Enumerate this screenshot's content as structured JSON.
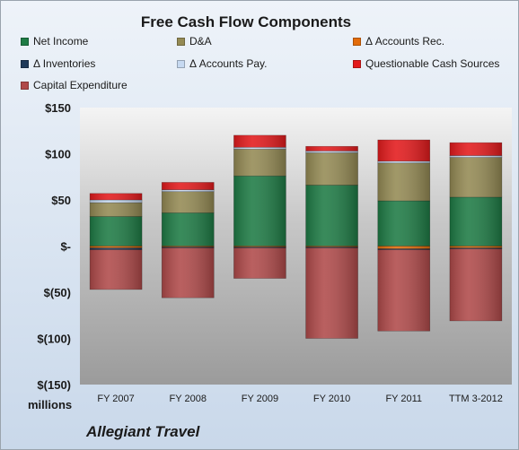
{
  "chart_data": {
    "type": "bar",
    "stacked": true,
    "title": "Free Cash Flow Components",
    "units_label": "millions",
    "source_label": "Allegiant Travel",
    "categories": [
      "FY 2007",
      "FY 2008",
      "FY 2009",
      "FY 2010",
      "FY 2011",
      "TTM 3-2012"
    ],
    "ylim": [
      -150,
      150
    ],
    "yticks": [
      150,
      100,
      50,
      0,
      -50,
      -100,
      -150
    ],
    "ytick_labels": [
      "$150",
      "$100",
      "$50",
      "$-",
      "$(50)",
      "$(100)",
      "$(150)"
    ],
    "grid": false,
    "legend_position": "top",
    "series": [
      {
        "name": "Net Income",
        "color": "#1e7b45",
        "values": [
          32,
          36,
          76,
          66,
          49,
          53
        ]
      },
      {
        "name": "D&A",
        "color": "#948a54",
        "values": [
          15,
          23,
          29,
          35,
          41,
          43
        ]
      },
      {
        "name": "Δ Accounts Rec.",
        "color": "#e36c0a",
        "values": [
          -2,
          -1,
          -1,
          -1,
          -3,
          -2
        ]
      },
      {
        "name": "Δ Inventories",
        "color": "#1f3a5a",
        "values": [
          -2,
          -1,
          -1,
          -1,
          -1,
          -1
        ]
      },
      {
        "name": "Δ Accounts Pay.",
        "color": "#c6d9f1",
        "values": [
          3,
          2,
          2,
          2,
          2,
          2
        ]
      },
      {
        "name": "Questionable Cash Sources",
        "color": "#e31a1c",
        "values": [
          7,
          8,
          13,
          5,
          23,
          14
        ]
      },
      {
        "name": "Capital Expenditure",
        "color": "#b04a4a",
        "values": [
          -43,
          -54,
          -33,
          -98,
          -88,
          -78
        ]
      }
    ]
  }
}
